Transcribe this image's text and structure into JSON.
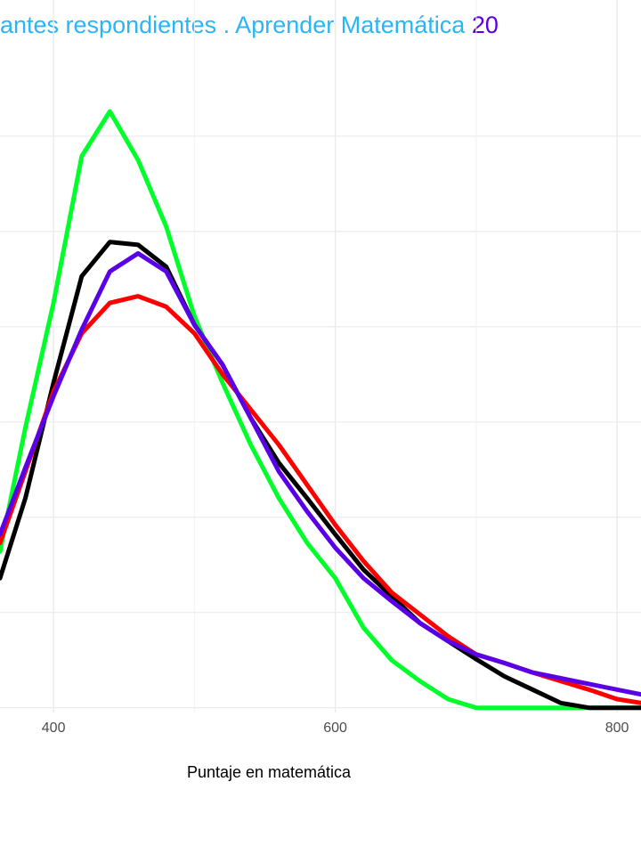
{
  "chart_data": {
    "type": "line",
    "title": "antes respondientes . Aprender Matemática",
    "title_suffix": "20",
    "title_color": "#29b6f6",
    "title_suffix_color": "#5a00e6",
    "xlabel": "Puntaje en matemática",
    "x": [
      362,
      380,
      400,
      420,
      440,
      460,
      480,
      500,
      520,
      540,
      560,
      580,
      600,
      620,
      640,
      660,
      680,
      700,
      720,
      740,
      760,
      780,
      800,
      817
    ],
    "series": [
      {
        "color": "#00ff2a",
        "values": [
          1.64,
          2.94,
          4.25,
          5.79,
          6.26,
          5.75,
          5.05,
          4.11,
          3.41,
          2.76,
          2.2,
          1.73,
          1.36,
          0.84,
          0.5,
          0.28,
          0.09,
          0,
          0,
          0,
          0,
          0,
          0,
          0
        ]
      },
      {
        "color": "#000000",
        "values": [
          1.36,
          2.2,
          3.41,
          4.53,
          4.89,
          4.86,
          4.63,
          4.02,
          3.6,
          3.04,
          2.57,
          2.2,
          1.82,
          1.45,
          1.17,
          0.89,
          0.7,
          0.51,
          0.33,
          0.19,
          0.05,
          0,
          0,
          0
        ]
      },
      {
        "color": "#ff0000",
        "values": [
          1.73,
          2.48,
          3.32,
          3.93,
          4.25,
          4.32,
          4.21,
          3.93,
          3.5,
          3.13,
          2.76,
          2.34,
          1.92,
          1.54,
          1.21,
          0.98,
          0.75,
          0.56,
          0.47,
          0.37,
          0.28,
          0.19,
          0.09,
          0.05
        ]
      },
      {
        "color": "#5a00e6",
        "values": [
          1.82,
          2.52,
          3.27,
          3.97,
          4.58,
          4.77,
          4.58,
          4.02,
          3.6,
          3.04,
          2.48,
          2.06,
          1.68,
          1.36,
          1.12,
          0.89,
          0.7,
          0.56,
          0.47,
          0.37,
          0.31,
          0.25,
          0.19,
          0.14
        ]
      }
    ],
    "xlim": [
      362,
      817
    ],
    "ylim": [
      -0.05,
      7.43
    ],
    "xticks": [
      400,
      600,
      800
    ],
    "x_minor_grid": [
      500,
      700
    ],
    "ygrid": [
      0,
      1,
      2,
      3,
      4,
      5,
      6
    ],
    "grid": true
  }
}
